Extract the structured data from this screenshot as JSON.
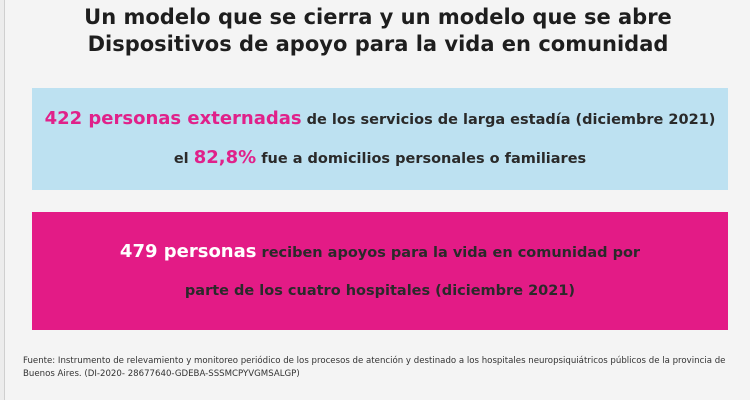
{
  "header": {
    "title": [
      "Un modelo que se cierra y un modelo que se abre",
      "Dispositivos de apoyo para la vida en comunidad"
    ]
  },
  "box1": {
    "line1": {
      "highlight": "422 personas externadas",
      "text": " de los servicios de larga estadía (diciembre 2021)"
    },
    "line2": {
      "prefix": "el ",
      "highlight": "82,8%",
      "text": " fue a domicilios personales o familiares"
    }
  },
  "box2": {
    "highlight": "479 personas",
    "text": " reciben apoyos para la vida en comunidad por parte de los cuatro hospitales (diciembre 2021)"
  },
  "footer": {
    "source": "Fuente: Instrumento de relevamiento y monitoreo periódico de los procesos de atención y destinado a los hospitales neuropsiquiátricos públicos de la provincia de Buenos Aires. (DI-2020- 28677640-GDEBA-SSSMCPYVGMSALGP)"
  }
}
